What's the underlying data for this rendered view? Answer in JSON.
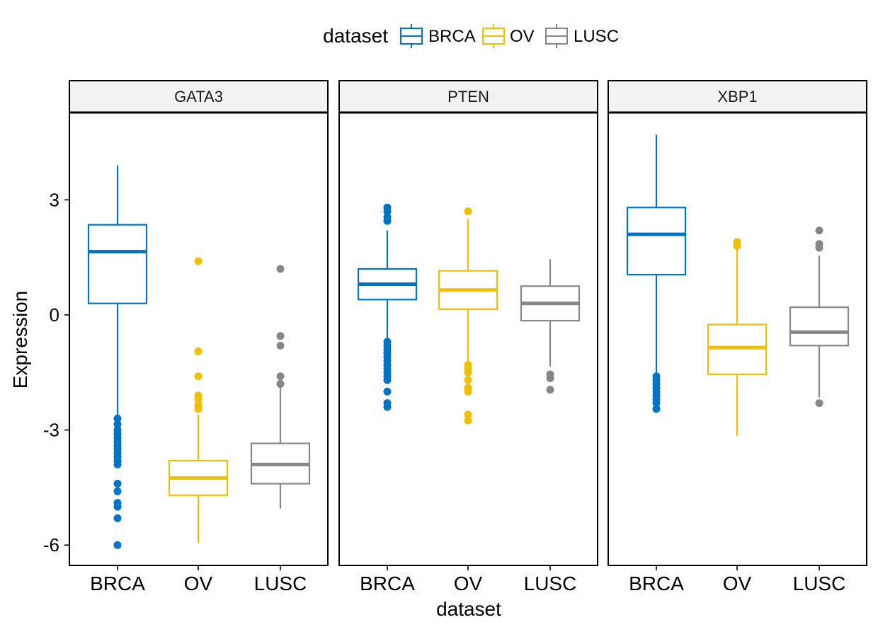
{
  "chart_data": {
    "type": "box",
    "xlabel": "dataset",
    "ylabel": "Expression",
    "ylim": [
      -6.5,
      5.6
    ],
    "yticks": [
      {
        "value": -6,
        "label": "-6"
      },
      {
        "value": -3,
        "label": "-3"
      },
      {
        "value": 0,
        "label": "0"
      },
      {
        "value": 3,
        "label": "3"
      }
    ],
    "categories": [
      "BRCA",
      "OV",
      "LUSC"
    ],
    "legend": {
      "title": "dataset",
      "position": "top",
      "entries": [
        "BRCA",
        "OV",
        "LUSC"
      ]
    },
    "colors": {
      "BRCA": "#0073c2",
      "OV": "#efc000",
      "LUSC": "#868686"
    },
    "panels": [
      {
        "name": "GATA3",
        "boxes": [
          {
            "category": "BRCA",
            "whisker_low": -2.65,
            "q1": 0.3,
            "median": 1.65,
            "q3": 2.35,
            "whisker_high": 3.9,
            "outliers": [
              -2.7,
              -2.85,
              -3.0,
              -3.1,
              -3.2,
              -3.3,
              -3.4,
              -3.5,
              -3.6,
              -3.7,
              -3.8,
              -3.9,
              -4.4,
              -4.6,
              -4.9,
              -5.0,
              -5.3,
              -6.0
            ]
          },
          {
            "category": "OV",
            "whisker_low": -5.95,
            "q1": -4.7,
            "median": -4.25,
            "q3": -3.8,
            "whisker_high": -2.6,
            "outliers": [
              1.4,
              -0.95,
              -1.6,
              -2.1,
              -2.2,
              -2.35,
              -2.45
            ]
          },
          {
            "category": "LUSC",
            "whisker_low": -5.05,
            "q1": -4.4,
            "median": -3.9,
            "q3": -3.35,
            "whisker_high": -1.9,
            "outliers": [
              1.2,
              -0.55,
              -0.8,
              -1.6,
              -1.8
            ]
          }
        ]
      },
      {
        "name": "PTEN",
        "boxes": [
          {
            "category": "BRCA",
            "whisker_low": -0.65,
            "q1": 0.4,
            "median": 0.8,
            "q3": 1.2,
            "whisker_high": 2.2,
            "outliers": [
              2.8,
              2.7,
              2.55,
              2.45,
              -0.7,
              -0.8,
              -0.9,
              -1.0,
              -1.1,
              -1.2,
              -1.3,
              -1.4,
              -1.5,
              -1.6,
              -1.7,
              -2.0,
              -2.3,
              -2.4
            ]
          },
          {
            "category": "OV",
            "whisker_low": -1.25,
            "q1": 0.15,
            "median": 0.65,
            "q3": 1.15,
            "whisker_high": 2.5,
            "outliers": [
              2.7,
              -1.3,
              -1.4,
              -1.5,
              -1.7,
              -1.9,
              -2.0,
              -2.6,
              -2.75
            ]
          },
          {
            "category": "LUSC",
            "whisker_low": -1.35,
            "q1": -0.15,
            "median": 0.3,
            "q3": 0.75,
            "whisker_high": 1.45,
            "outliers": [
              -1.55,
              -1.65,
              -1.95
            ]
          }
        ]
      },
      {
        "name": "XBP1",
        "boxes": [
          {
            "category": "BRCA",
            "whisker_low": -1.55,
            "q1": 1.05,
            "median": 2.1,
            "q3": 2.8,
            "whisker_high": 4.7,
            "outliers": [
              -1.6,
              -1.7,
              -1.8,
              -1.9,
              -2.0,
              -2.1,
              -2.2,
              -2.3,
              -2.45
            ]
          },
          {
            "category": "OV",
            "whisker_low": -3.15,
            "q1": -1.55,
            "median": -0.85,
            "q3": -0.25,
            "whisker_high": 1.75,
            "outliers": [
              1.9,
              1.8
            ]
          },
          {
            "category": "LUSC",
            "whisker_low": -2.15,
            "q1": -0.8,
            "median": -0.45,
            "q3": 0.2,
            "whisker_high": 1.55,
            "outliers": [
              2.2,
              1.85,
              1.75,
              -2.3
            ]
          }
        ]
      }
    ]
  }
}
